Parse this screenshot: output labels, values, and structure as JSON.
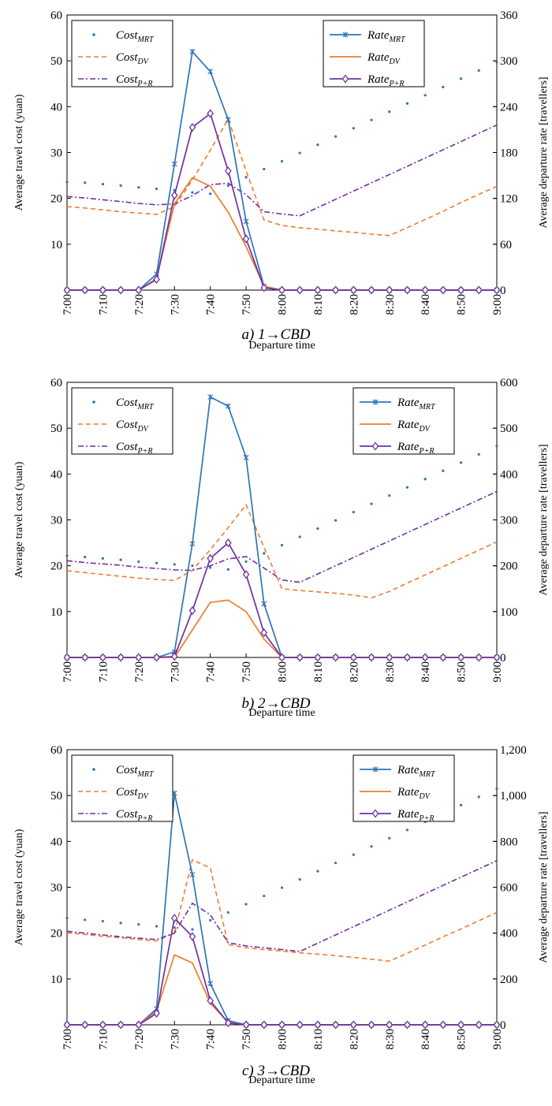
{
  "chart_data": [
    {
      "type": "line",
      "caption": "a) 1→CBD",
      "xlabel": "Departure time",
      "ylabel": "Average travel cost (yuan)",
      "y2label": "Average departure rate [travellers]",
      "x": [
        "7:00",
        "7:05",
        "7:10",
        "7:15",
        "7:20",
        "7:25",
        "7:30",
        "7:35",
        "7:40",
        "7:45",
        "7:50",
        "7:55",
        "8:00",
        "8:05",
        "8:10",
        "8:15",
        "8:20",
        "8:25",
        "8:30",
        "8:35",
        "8:40",
        "8:45",
        "8:50",
        "8:55",
        "9:00"
      ],
      "xticks": [
        "7:00",
        "7:10",
        "7:20",
        "7:30",
        "7:40",
        "7:50",
        "8:00",
        "8:10",
        "8:20",
        "8:30",
        "8:40",
        "8:50",
        "9:00"
      ],
      "ylim": [
        0,
        60
      ],
      "yticks": [
        10,
        20,
        30,
        40,
        50,
        60
      ],
      "y2lim": [
        0,
        360
      ],
      "y2ticks": [
        "0",
        "60",
        "120",
        "180",
        "240",
        "300",
        "360"
      ],
      "grid": false,
      "legend_cost_position": "top-left",
      "legend_rate_position": "top-center",
      "series_cost": [
        {
          "name": "Cost",
          "sub": "MRT",
          "values": [
            23.6,
            23.4,
            23.1,
            22.8,
            22.4,
            22.1,
            21.8,
            21.3,
            21.0,
            22.8,
            24.6,
            26.4,
            28.1,
            29.9,
            31.7,
            33.5,
            35.3,
            37.1,
            38.9,
            40.7,
            42.5,
            44.3,
            46.1,
            47.9,
            49.7
          ]
        },
        {
          "name": "Cost",
          "sub": "DV",
          "values": [
            18.2,
            17.9,
            17.5,
            17.1,
            16.8,
            16.5,
            18.2,
            24.0,
            30.5,
            37.3,
            26.0,
            15.3,
            14.1,
            13.6,
            13.3,
            12.9,
            12.6,
            12.2,
            11.9,
            13.6,
            15.4,
            17.2,
            19.1,
            20.9,
            22.6
          ]
        },
        {
          "name": "Cost",
          "sub": "P+R",
          "values": [
            20.4,
            20.1,
            19.7,
            19.3,
            18.9,
            18.6,
            18.8,
            20.6,
            23.0,
            23.3,
            20.8,
            17.1,
            16.6,
            16.2,
            18.0,
            19.8,
            21.6,
            23.4,
            25.2,
            27.0,
            28.8,
            30.6,
            32.4,
            34.2,
            36.0
          ]
        }
      ],
      "series_rate": [
        {
          "name": "Rate",
          "sub": "MRT",
          "values": [
            0,
            0,
            0,
            0,
            0,
            21,
            165,
            312,
            286,
            223,
            90,
            5,
            0,
            0,
            0,
            0,
            0,
            0,
            0,
            0,
            0,
            0,
            0,
            0,
            0
          ]
        },
        {
          "name": "Rate",
          "sub": "DV",
          "values": [
            0,
            0,
            0,
            0,
            0,
            15,
            113,
            147,
            136,
            102,
            57,
            5,
            0,
            0,
            0,
            0,
            0,
            0,
            0,
            0,
            0,
            0,
            0,
            0,
            0
          ]
        },
        {
          "name": "Rate",
          "sub": "P+R",
          "values": [
            0,
            0,
            0,
            0,
            0,
            14,
            124,
            213,
            231,
            156,
            67,
            3,
            0,
            0,
            0,
            0,
            0,
            0,
            0,
            0,
            0,
            0,
            0,
            0,
            0
          ]
        }
      ]
    },
    {
      "type": "line",
      "caption": "b) 2→CBD",
      "xlabel": "Departure time",
      "ylabel": "Average travel cost (yuan)",
      "y2label": "Average departure rate [travellers]",
      "x": [
        "7:00",
        "7:05",
        "7:10",
        "7:15",
        "7:20",
        "7:25",
        "7:30",
        "7:35",
        "7:40",
        "7:45",
        "7:50",
        "7:55",
        "8:00",
        "8:05",
        "8:10",
        "8:15",
        "8:20",
        "8:25",
        "8:30",
        "8:35",
        "8:40",
        "8:45",
        "8:50",
        "8:55",
        "9:00"
      ],
      "xticks": [
        "7:00",
        "7:10",
        "7:20",
        "7:30",
        "7:40",
        "7:50",
        "8:00",
        "8:10",
        "8:20",
        "8:30",
        "8:40",
        "8:50",
        "9:00"
      ],
      "ylim": [
        0,
        60
      ],
      "yticks": [
        10,
        20,
        30,
        40,
        50,
        60
      ],
      "y2lim": [
        0,
        600
      ],
      "y2ticks": [
        "0",
        "100",
        "200",
        "300",
        "400",
        "500",
        "600"
      ],
      "grid": false,
      "legend_cost_position": "top-left",
      "legend_rate_position": "top-right",
      "series_cost": [
        {
          "name": "Cost",
          "sub": "MRT",
          "values": [
            22.2,
            21.9,
            21.6,
            21.3,
            20.9,
            20.6,
            20.3,
            20.0,
            19.6,
            19.2,
            20.9,
            22.7,
            24.5,
            26.3,
            28.1,
            29.9,
            31.7,
            33.5,
            35.3,
            37.1,
            38.9,
            40.7,
            42.5,
            44.3,
            46.1
          ]
        },
        {
          "name": "Cost",
          "sub": "DV",
          "values": [
            18.9,
            18.5,
            18.1,
            17.7,
            17.3,
            17.0,
            16.8,
            19.0,
            23.5,
            28.3,
            33.3,
            24.0,
            15.0,
            14.6,
            14.3,
            14.0,
            13.6,
            13.0,
            14.4,
            16.2,
            18.0,
            19.8,
            21.6,
            23.4,
            25.2
          ]
        },
        {
          "name": "Cost",
          "sub": "P+R",
          "values": [
            21.1,
            20.7,
            20.4,
            20.1,
            19.7,
            19.4,
            19.1,
            19.0,
            20.0,
            21.5,
            22.0,
            19.5,
            16.9,
            16.4,
            18.2,
            20.0,
            21.8,
            23.6,
            25.4,
            27.2,
            29.0,
            30.8,
            32.6,
            34.4,
            36.2
          ]
        }
      ],
      "series_rate": [
        {
          "name": "Rate",
          "sub": "MRT",
          "values": [
            0,
            0,
            0,
            0,
            0,
            0,
            12,
            248,
            568,
            548,
            436,
            117,
            0,
            0,
            0,
            0,
            0,
            0,
            0,
            0,
            0,
            0,
            0,
            0,
            0
          ]
        },
        {
          "name": "Rate",
          "sub": "DV",
          "values": [
            0,
            0,
            0,
            0,
            0,
            0,
            0,
            60,
            120,
            125,
            100,
            40,
            0,
            0,
            0,
            0,
            0,
            0,
            0,
            0,
            0,
            0,
            0,
            0,
            0
          ]
        },
        {
          "name": "Rate",
          "sub": "P+R",
          "values": [
            0,
            0,
            0,
            0,
            0,
            0,
            2,
            102,
            216,
            250,
            181,
            54,
            0,
            0,
            0,
            0,
            0,
            0,
            0,
            0,
            0,
            0,
            0,
            0,
            0
          ]
        }
      ]
    },
    {
      "type": "line",
      "caption": "c) 3→CBD",
      "xlabel": "Departure time",
      "ylabel": "Average travel cost (yuan)",
      "y2label": "Average departure rate [travellers]",
      "x": [
        "7:00",
        "7:05",
        "7:10",
        "7:15",
        "7:20",
        "7:25",
        "7:30",
        "7:35",
        "7:40",
        "7:45",
        "7:50",
        "7:55",
        "8:00",
        "8:05",
        "8:10",
        "8:15",
        "8:20",
        "8:25",
        "8:30",
        "8:35",
        "8:40",
        "8:45",
        "8:50",
        "8:55",
        "9:00"
      ],
      "xticks": [
        "7:00",
        "7:10",
        "7:20",
        "7:30",
        "7:40",
        "7:50",
        "8:00",
        "8:10",
        "8:20",
        "8:30",
        "8:40",
        "8:50",
        "9:00"
      ],
      "ylim": [
        0,
        60
      ],
      "yticks": [
        10,
        20,
        30,
        40,
        50,
        60
      ],
      "y2lim": [
        0,
        1200
      ],
      "y2ticks": [
        "0",
        "200",
        "400",
        "600",
        "800",
        "1,000",
        "1,200"
      ],
      "grid": false,
      "legend_cost_position": "top-left",
      "legend_rate_position": "top-right",
      "series_cost": [
        {
          "name": "Cost",
          "sub": "MRT",
          "values": [
            23.3,
            22.9,
            22.6,
            22.2,
            21.9,
            21.5,
            21.2,
            20.8,
            22.8,
            24.5,
            26.3,
            28.1,
            29.9,
            31.7,
            33.5,
            35.3,
            37.1,
            38.9,
            40.7,
            42.5,
            44.3,
            46.1,
            47.9,
            49.7,
            51.5
          ]
        },
        {
          "name": "Cost",
          "sub": "DV",
          "values": [
            20.1,
            19.7,
            19.3,
            19.0,
            18.6,
            18.3,
            20.0,
            36.0,
            34.2,
            17.5,
            16.8,
            16.4,
            16.1,
            15.7,
            15.4,
            15.1,
            14.7,
            14.3,
            13.9,
            15.6,
            17.4,
            19.2,
            20.9,
            22.7,
            24.5
          ]
        },
        {
          "name": "Cost",
          "sub": "P+R",
          "values": [
            20.4,
            20.0,
            19.6,
            19.2,
            18.9,
            18.6,
            20.0,
            26.5,
            24.0,
            17.9,
            17.2,
            16.8,
            16.4,
            16.0,
            17.8,
            19.6,
            21.4,
            23.2,
            25.0,
            26.8,
            28.6,
            30.4,
            32.2,
            34.0,
            35.8
          ]
        }
      ],
      "series_rate": [
        {
          "name": "Rate",
          "sub": "MRT",
          "values": [
            0,
            0,
            0,
            0,
            0,
            70,
            1010,
            655,
            180,
            18,
            0,
            0,
            0,
            0,
            0,
            0,
            0,
            0,
            0,
            0,
            0,
            0,
            0,
            0,
            0
          ]
        },
        {
          "name": "Rate",
          "sub": "DV",
          "values": [
            0,
            0,
            0,
            0,
            0,
            60,
            305,
            270,
            95,
            10,
            0,
            0,
            0,
            0,
            0,
            0,
            0,
            0,
            0,
            0,
            0,
            0,
            0,
            0,
            0
          ]
        },
        {
          "name": "Rate",
          "sub": "P+R",
          "values": [
            0,
            0,
            0,
            0,
            0,
            50,
            465,
            385,
            105,
            8,
            0,
            0,
            0,
            0,
            0,
            0,
            0,
            0,
            0,
            0,
            0,
            0,
            0,
            0,
            0
          ]
        }
      ]
    }
  ],
  "colors": {
    "mrt": "#2e75b6",
    "dv": "#ed7d31",
    "pr": "#7030a0",
    "axis": "#000000"
  }
}
